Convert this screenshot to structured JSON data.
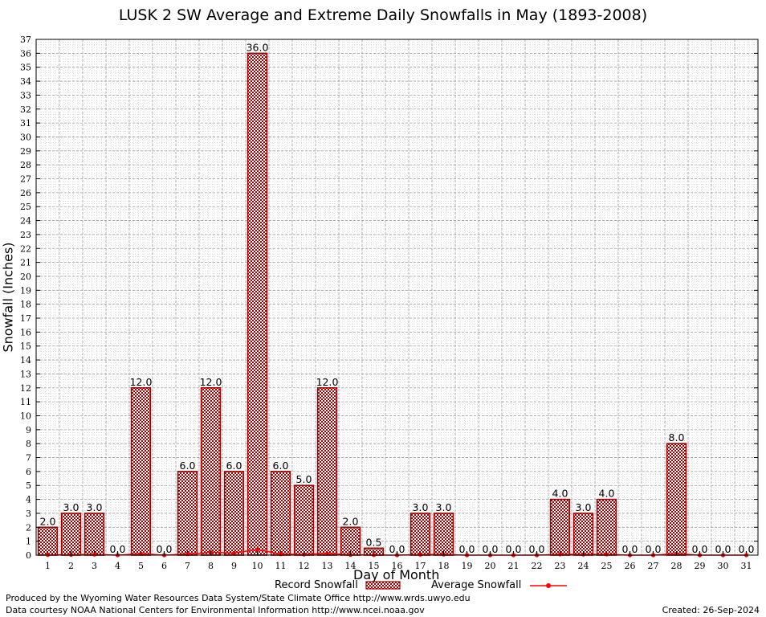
{
  "chart": {
    "title": "LUSK 2 SW Average and Extreme Daily Snowfalls in May (1893-2008)",
    "ylabel": "Snowfall (Inches)",
    "xlabel": "Day of Month"
  },
  "legend": {
    "record_label": "Record Snowfall",
    "average_label": "Average Snowfall"
  },
  "footer": {
    "produced_by": "Produced by the Wyoming Water Resources Data System/State Climate Office http://www.wrds.uwyo.edu",
    "data_courtesy": "Data courtesy NOAA National Centers for Environmental Information http://www.ncei.noaa.gov",
    "created": "Created:  26-Sep-2024"
  },
  "colors": {
    "bar_outline": "#a00000",
    "bar_fill_a": "#a00000",
    "bar_fill_b": "#ffffff",
    "average_line": "#ff0000",
    "grid": "#a0a0a0"
  },
  "chart_data": {
    "type": "bar",
    "categories": [
      "1",
      "2",
      "3",
      "4",
      "5",
      "6",
      "7",
      "8",
      "9",
      "10",
      "11",
      "12",
      "13",
      "14",
      "15",
      "16",
      "17",
      "18",
      "19",
      "20",
      "21",
      "22",
      "23",
      "24",
      "25",
      "26",
      "27",
      "28",
      "29",
      "30",
      "31"
    ],
    "series": [
      {
        "name": "Record Snowfall",
        "type": "bar",
        "values": [
          2.0,
          3.0,
          3.0,
          0.0,
          12.0,
          0.0,
          6.0,
          12.0,
          6.0,
          36.0,
          6.0,
          5.0,
          12.0,
          2.0,
          0.5,
          0.0,
          3.0,
          3.0,
          0.0,
          0.0,
          0.0,
          0.0,
          4.0,
          3.0,
          4.0,
          0.0,
          0.0,
          8.0,
          0.0,
          0.0,
          0.0
        ],
        "data_labels": [
          "2.0",
          "3.0",
          "3.0",
          "0.0",
          "12.0",
          "0.0",
          "6.0",
          "12.0",
          "6.0",
          "36.0",
          "6.0",
          "5.0",
          "12.0",
          "2.0",
          "0.5",
          "0.0",
          "3.0",
          "3.0",
          "0.0",
          "0.0",
          "0.0",
          "0.0",
          "4.0",
          "3.0",
          "4.0",
          "0.0",
          "0.0",
          "8.0",
          "0.0",
          "0.0",
          "0.0"
        ]
      },
      {
        "name": "Average Snowfall",
        "type": "line",
        "values": [
          0.02,
          0.03,
          0.05,
          0.0,
          0.1,
          0.0,
          0.08,
          0.2,
          0.15,
          0.4,
          0.07,
          0.05,
          0.12,
          0.03,
          0.01,
          0.0,
          0.04,
          0.05,
          0.0,
          0.0,
          0.0,
          0.0,
          0.06,
          0.05,
          0.06,
          0.0,
          0.0,
          0.1,
          0.0,
          0.0,
          0.0
        ]
      }
    ],
    "yticks": [
      0,
      1,
      2,
      3,
      4,
      5,
      6,
      7,
      8,
      9,
      10,
      11,
      12,
      13,
      14,
      15,
      16,
      17,
      18,
      19,
      20,
      21,
      22,
      23,
      24,
      25,
      26,
      27,
      28,
      29,
      30,
      31,
      32,
      33,
      34,
      35,
      36,
      37
    ],
    "ylim": [
      0,
      37
    ],
    "grid": true,
    "legend_position": "bottom"
  }
}
